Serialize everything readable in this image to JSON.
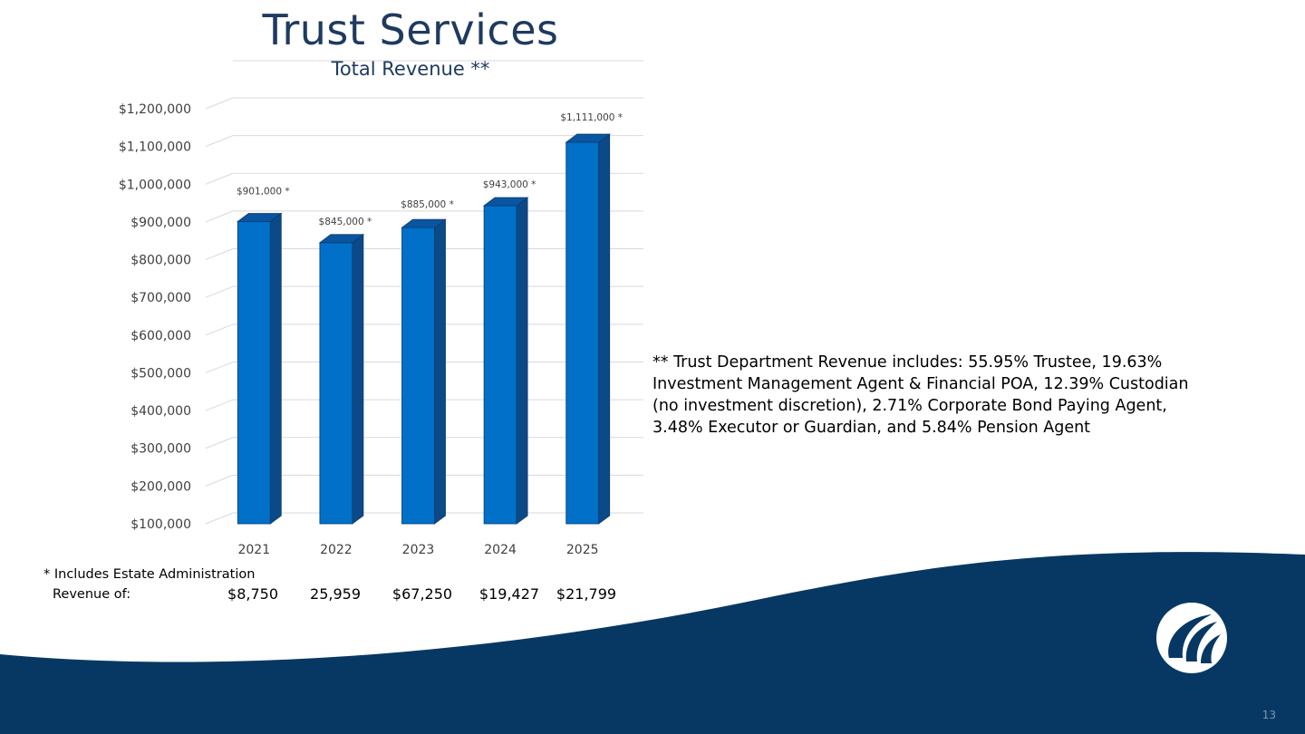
{
  "title": "Trust Services",
  "subtitle": "Total Revenue **",
  "chart_data": {
    "type": "bar",
    "categories": [
      "2021",
      "2022",
      "2023",
      "2024",
      "2025"
    ],
    "values": [
      901000,
      845000,
      885000,
      943000,
      1111000
    ],
    "data_labels": [
      "$901,000 *",
      "$845,000 *",
      "$885,000 *",
      "$943,000 *",
      "$1,111,000 *"
    ],
    "ylim": [
      100000,
      1200000
    ],
    "yticks": [
      100000,
      200000,
      300000,
      400000,
      500000,
      600000,
      700000,
      800000,
      900000,
      1000000,
      1100000,
      1200000
    ],
    "ytick_labels": [
      "$100,000",
      "$200,000",
      "$300,000",
      "$400,000",
      "$500,000",
      "$600,000",
      "$700,000",
      "$800,000",
      "$900,000",
      "$1,000,000",
      "$1,100,000",
      "$1,200,000"
    ],
    "grid": true,
    "style": "3d",
    "colors": {
      "front": "#0070c8",
      "top": "#0a55a0",
      "side": "#0b4a86"
    }
  },
  "note": {
    "line1": "** Trust Department Revenue includes:  55.95% Trustee, 19.63%",
    "line2": "Investment Management Agent & Financial POA, 12.39% Custodian",
    "line3": "(no investment discretion), 2.71% Corporate Bond Paying Agent,",
    "line4": "3.48% Executor or Guardian, and 5.84% Pension Agent"
  },
  "footnote": {
    "line1": "* Includes Estate Administration",
    "label": "Revenue of:",
    "values": [
      "$8,750",
      "25,959",
      "$67,250",
      "$19,427",
      "$21,799"
    ]
  },
  "page_number": "13",
  "colors": {
    "title": "#1f3a5f",
    "navy": "#073863",
    "logo_bg": "#ffffff"
  }
}
